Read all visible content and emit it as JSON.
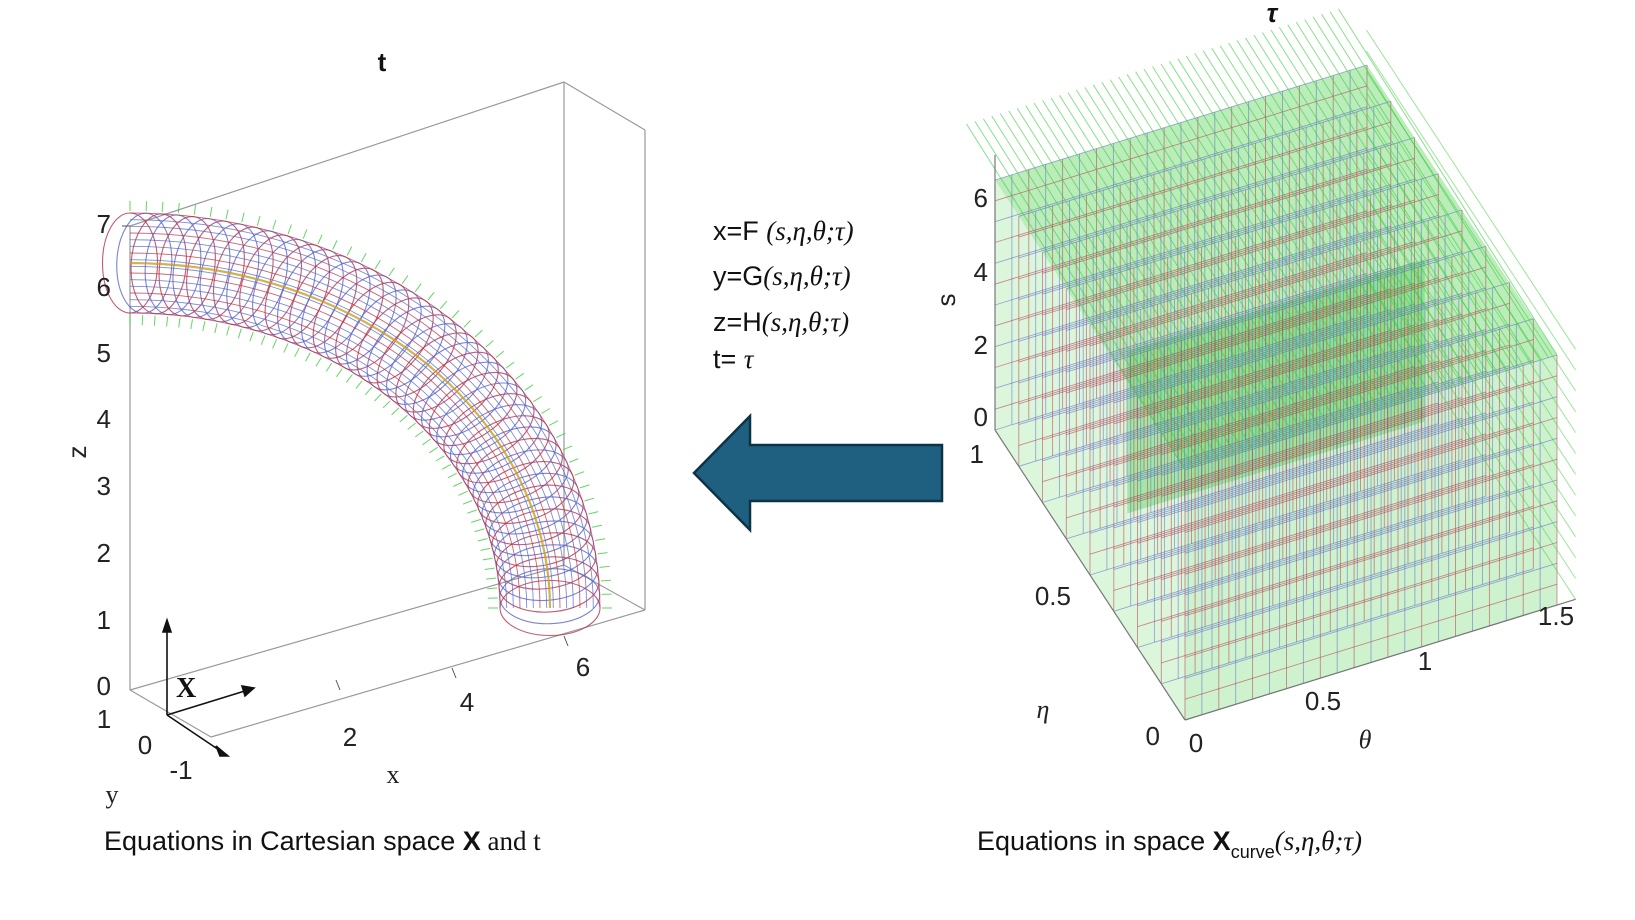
{
  "left_plot": {
    "title": "t",
    "z_label": "z",
    "x_label": "x",
    "y_label": "y",
    "vector_label": "X",
    "z_ticks": [
      "0",
      "1",
      "2",
      "3",
      "4",
      "5",
      "6",
      "7"
    ],
    "x_ticks": [
      "2",
      "4",
      "6"
    ],
    "y_ticks": [
      "1",
      "0",
      "-1"
    ]
  },
  "right_plot": {
    "title": "τ",
    "s_label": "s",
    "eta_label": "η",
    "theta_label": "θ",
    "s_ticks": [
      "0",
      "2",
      "4",
      "6"
    ],
    "eta_ticks": [
      "1",
      "0.5",
      "0"
    ],
    "theta_ticks": [
      "0",
      "0.5",
      "1",
      "1.5"
    ]
  },
  "equations": {
    "x": {
      "lhs": "x=F ",
      "args": "(s,η,θ;τ)"
    },
    "y": {
      "lhs": "y=G",
      "args": "(s,η,θ;τ)"
    },
    "z": {
      "lhs": "z=H",
      "args": "(s,η,θ;τ)"
    },
    "t": {
      "lhs": "t= ",
      "args": "τ"
    }
  },
  "captions": {
    "left": {
      "prefix": "Equations in Cartesian space ",
      "bold": "X",
      "suffix": " and t"
    },
    "right": {
      "prefix": "Equations in  space ",
      "bold": "X",
      "sub": "curve",
      "args": "(s,η,θ;τ)"
    }
  },
  "colors": {
    "arrow_fill": "#1f5f80",
    "arrow_stroke": "#0d3347",
    "mesh_blue": "#5a64c8",
    "mesh_red": "#b4324a",
    "mesh_green": "#3ccc3c"
  }
}
